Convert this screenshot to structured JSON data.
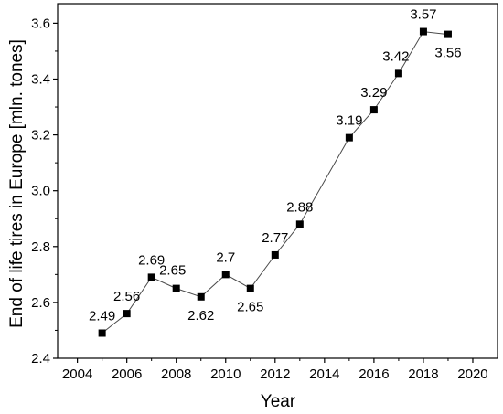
{
  "chart_data": {
    "type": "line",
    "title": "",
    "xlabel": "Year",
    "ylabel": "End of life tires in Europe [mln. tones]",
    "xlim": [
      2003.2,
      2021
    ],
    "ylim": [
      2.4,
      3.67
    ],
    "x_ticks": [
      "2004",
      "2006",
      "2008",
      "2010",
      "2012",
      "2014",
      "2016",
      "2018",
      "2020"
    ],
    "y_ticks": [
      "2.4",
      "2.6",
      "2.8",
      "3.0",
      "3.2",
      "3.4",
      "3.6"
    ],
    "grid": false,
    "legend": "none",
    "marker": "square",
    "series": [
      {
        "x": [
          2005,
          2006,
          2007,
          2008,
          2009,
          2010,
          2011,
          2012,
          2013,
          2015,
          2016,
          2017,
          2018,
          2019
        ],
        "y": [
          2.49,
          2.56,
          2.69,
          2.65,
          2.62,
          2.7,
          2.65,
          2.77,
          2.88,
          3.19,
          3.29,
          3.42,
          3.57,
          3.56
        ],
        "labels": [
          "2.49",
          "2.56",
          "2.69",
          "2.65",
          "2.62",
          "2.7",
          "2.65",
          "2.77",
          "2.88",
          "3.19",
          "3.29",
          "3.42",
          "3.57",
          "3.56"
        ]
      }
    ],
    "colors": {
      "line": "#4a4a4a",
      "marker": "#000000",
      "axis": "#000000"
    }
  }
}
